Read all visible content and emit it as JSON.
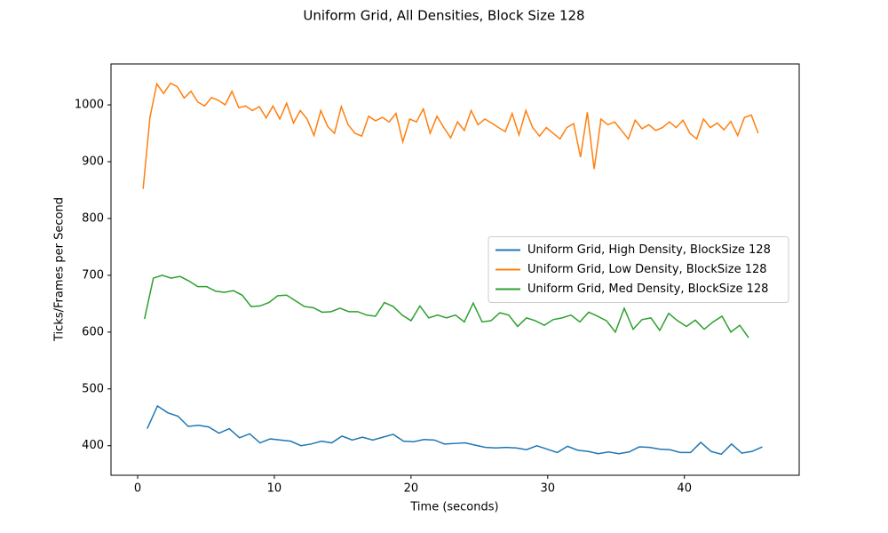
{
  "chart_data": {
    "type": "line",
    "title": "Uniform Grid, All Densities, Block Size 128",
    "x_label": "Time (seconds)",
    "y_label": "Ticks/Frames per Second",
    "xlim": [
      -1.95,
      48.4
    ],
    "ylim": [
      348,
      1072
    ],
    "xticks": [
      0,
      10,
      20,
      30,
      40
    ],
    "yticks": [
      400,
      500,
      600,
      700,
      800,
      900,
      1000
    ],
    "grid": false,
    "legend": "center right",
    "series": [
      {
        "name": "Uniform Grid, High Density, BlockSize 128",
        "color": "#1f77b4",
        "x": [
          0.7,
          1.45,
          2.2,
          2.95,
          3.7,
          4.45,
          5.2,
          5.95,
          6.7,
          7.45,
          8.2,
          8.95,
          9.7,
          10.45,
          11.2,
          11.95,
          12.7,
          13.45,
          14.2,
          14.95,
          15.7,
          16.45,
          17.2,
          17.95,
          18.7,
          19.45,
          20.2,
          20.95,
          21.7,
          22.45,
          23.2,
          23.95,
          24.7,
          25.45,
          26.2,
          26.95,
          27.7,
          28.45,
          29.2,
          29.95,
          30.7,
          31.45,
          32.2,
          32.95,
          33.7,
          34.45,
          35.2,
          35.95,
          36.7,
          37.45,
          38.2,
          38.95,
          39.7,
          40.45,
          41.2,
          41.95,
          42.7,
          43.45,
          44.2,
          44.95,
          45.7
        ],
        "values": [
          430,
          470,
          458,
          452,
          434,
          436,
          433,
          422,
          430,
          414,
          421,
          405,
          412,
          410,
          408,
          400,
          403,
          408,
          405,
          417,
          410,
          415,
          410,
          415,
          420,
          408,
          407,
          411,
          410,
          403,
          404,
          405,
          401,
          397,
          396,
          397,
          396,
          393,
          400,
          394,
          388,
          399,
          392,
          390,
          386,
          389,
          386,
          389,
          398,
          397,
          394,
          393,
          388,
          388,
          406,
          390,
          385,
          403,
          387,
          390,
          398
        ]
      },
      {
        "name": "Uniform Grid, Low Density, BlockSize 128",
        "color": "#ff7f0e",
        "x": [
          0.4,
          0.9,
          1.4,
          1.9,
          2.4,
          2.9,
          3.4,
          3.9,
          4.4,
          4.9,
          5.4,
          5.9,
          6.4,
          6.9,
          7.4,
          7.9,
          8.4,
          8.9,
          9.4,
          9.9,
          10.4,
          10.9,
          11.4,
          11.9,
          12.4,
          12.9,
          13.4,
          13.9,
          14.4,
          14.9,
          15.4,
          15.9,
          16.4,
          16.9,
          17.4,
          17.9,
          18.4,
          18.9,
          19.4,
          19.9,
          20.4,
          20.9,
          21.4,
          21.9,
          22.4,
          22.9,
          23.4,
          23.9,
          24.4,
          24.9,
          25.4,
          25.9,
          26.4,
          26.9,
          27.4,
          27.9,
          28.4,
          28.9,
          29.4,
          29.9,
          30.4,
          30.9,
          31.4,
          31.9,
          32.4,
          32.9,
          33.4,
          33.9,
          34.4,
          34.9,
          35.4,
          35.9,
          36.4,
          36.9,
          37.4,
          37.9,
          38.4,
          38.9,
          39.4,
          39.9,
          40.4,
          40.9,
          41.4,
          41.9,
          42.4,
          42.9,
          43.4,
          43.9,
          44.4,
          44.9,
          45.4
        ],
        "values": [
          852,
          978,
          1037,
          1020,
          1038,
          1032,
          1012,
          1024,
          1005,
          998,
          1013,
          1008,
          1000,
          1024,
          995,
          998,
          990,
          997,
          977,
          998,
          975,
          1003,
          968,
          990,
          975,
          946,
          990,
          962,
          950,
          997,
          965,
          950,
          945,
          980,
          972,
          978,
          970,
          985,
          935,
          975,
          970,
          993,
          950,
          980,
          960,
          942,
          970,
          955,
          990,
          965,
          975,
          968,
          960,
          953,
          985,
          947,
          990,
          960,
          945,
          960,
          950,
          940,
          960,
          967,
          908,
          987,
          887,
          975,
          965,
          970,
          955,
          940,
          973,
          958,
          965,
          955,
          960,
          970,
          960,
          973,
          950,
          940,
          975,
          960,
          968,
          956,
          971,
          946,
          978,
          982,
          950
        ]
      },
      {
        "name": "Uniform Grid, Med Density, BlockSize 128",
        "color": "#2ca02c",
        "x": [
          0.5,
          1.15,
          1.8,
          2.45,
          3.1,
          3.75,
          4.4,
          5.05,
          5.7,
          6.35,
          7,
          7.65,
          8.3,
          8.95,
          9.6,
          10.25,
          10.9,
          11.55,
          12.2,
          12.85,
          13.5,
          14.15,
          14.8,
          15.45,
          16.1,
          16.75,
          17.4,
          18.05,
          18.7,
          19.35,
          20,
          20.65,
          21.3,
          21.95,
          22.6,
          23.25,
          23.9,
          24.55,
          25.2,
          25.85,
          26.5,
          27.15,
          27.8,
          28.45,
          29.1,
          29.75,
          30.4,
          31.05,
          31.7,
          32.35,
          33,
          33.65,
          34.3,
          34.95,
          35.6,
          36.25,
          36.9,
          37.55,
          38.2,
          38.85,
          39.5,
          40.15,
          40.8,
          41.45,
          42.1,
          42.75,
          43.4,
          44.05,
          44.7
        ],
        "values": [
          623,
          695,
          700,
          695,
          698,
          690,
          680,
          680,
          672,
          670,
          673,
          665,
          645,
          646,
          652,
          664,
          665,
          655,
          645,
          643,
          635,
          636,
          642,
          636,
          636,
          630,
          628,
          652,
          645,
          630,
          620,
          646,
          625,
          630,
          625,
          630,
          618,
          651,
          618,
          620,
          634,
          630,
          610,
          625,
          620,
          612,
          622,
          625,
          630,
          618,
          635,
          628,
          620,
          600,
          642,
          605,
          622,
          625,
          603,
          633,
          620,
          610,
          621,
          605,
          618,
          628,
          600,
          612,
          590
        ]
      }
    ]
  }
}
